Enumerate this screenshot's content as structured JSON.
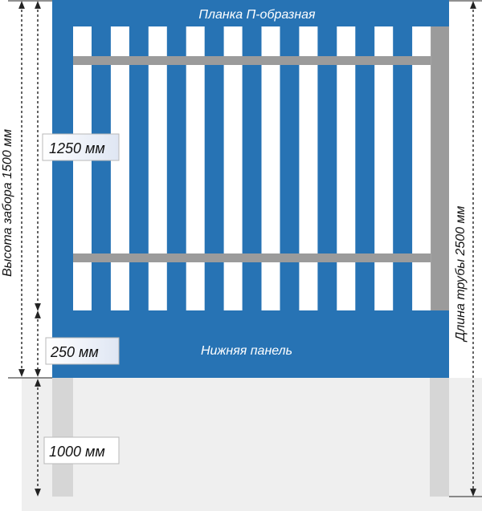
{
  "labels": {
    "top_plank": "Планка П-образная",
    "bottom_panel": "Нижняя панель",
    "fence_height": "Высота забора 1500 мм",
    "pipe_length": "Длина трубы 2500 мм",
    "slat_section": "1250 мм",
    "panel_section": "250 мм",
    "underground": "1000 мм"
  },
  "colors": {
    "fence_blue": "#2773b4",
    "slat_white": "#ffffff",
    "rail_gray": "#9b9b9b",
    "post_gray": "#d6d6d6",
    "ground": "#efefef",
    "label_box_light": "#e6ebf5",
    "label_box_dark": "#ffffff"
  }
}
